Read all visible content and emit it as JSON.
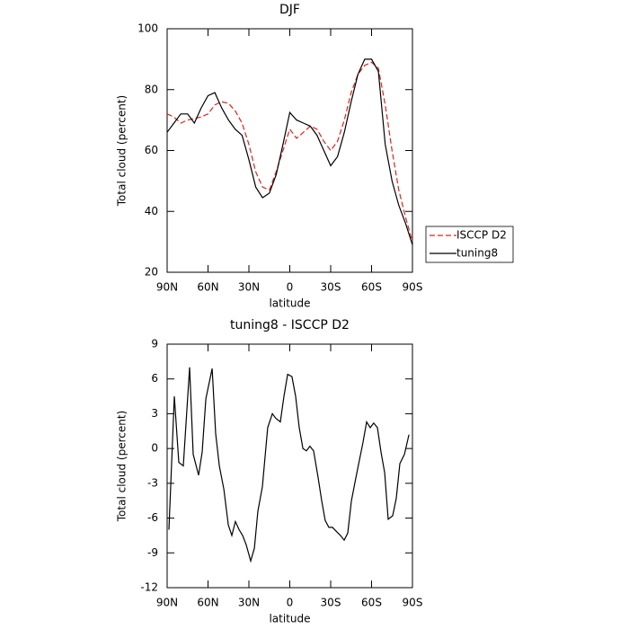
{
  "chart_data": [
    {
      "type": "line",
      "title": "DJF",
      "xlabel": "latitude",
      "ylabel": "Total cloud (percent)",
      "x": [
        90,
        85,
        80,
        75,
        70,
        65,
        60,
        55,
        50,
        45,
        40,
        35,
        30,
        25,
        20,
        15,
        10,
        5,
        0,
        -5,
        -10,
        -15,
        -20,
        -25,
        -30,
        -35,
        -40,
        -45,
        -50,
        -55,
        -60,
        -65,
        -70,
        -75,
        -80,
        -85,
        -90
      ],
      "series": [
        {
          "name": "ISCCP D2",
          "color": "#e0201a",
          "dash": true,
          "values": [
            72,
            71,
            69,
            70,
            70.5,
            71,
            72,
            75,
            76,
            75.5,
            73,
            69,
            62,
            53,
            48,
            47,
            53,
            60,
            67,
            64,
            66,
            68,
            67,
            63,
            60,
            63,
            70,
            79,
            85,
            88,
            89,
            87,
            75,
            60,
            47,
            38,
            30
          ]
        },
        {
          "name": "tuning8",
          "color": "#000000",
          "dash": false,
          "values": [
            66,
            69,
            72,
            72,
            69,
            74,
            78,
            79,
            74,
            70,
            67,
            65,
            57,
            48,
            44.5,
            46,
            52,
            62,
            72.5,
            70,
            69,
            68,
            65,
            60,
            55,
            58,
            66,
            76,
            85,
            90,
            90,
            86,
            62,
            50,
            42,
            36,
            29
          ]
        }
      ],
      "xlim": [
        90,
        -90
      ],
      "xticks": [
        {
          "value": 90,
          "label": "90N"
        },
        {
          "value": 60,
          "label": "60N"
        },
        {
          "value": 30,
          "label": "30N"
        },
        0,
        {
          "value": -30,
          "label": "30S"
        },
        {
          "value": -60,
          "label": "60S"
        },
        {
          "value": -90,
          "label": "90S"
        }
      ],
      "ylim": [
        20,
        100
      ],
      "yticks": [
        20,
        40,
        60,
        80,
        100
      ],
      "legend": "outside-right"
    },
    {
      "type": "line",
      "title": "tuning8 - ISCCP D2",
      "xlabel": "latitude",
      "ylabel": "Total cloud (percent)",
      "x": [
        88.7,
        84.7,
        81.4,
        78.1,
        73.5,
        70.9,
        66.9,
        64.3,
        61.6,
        57.0,
        54.4,
        51.7,
        48.4,
        45.1,
        42.5,
        39.9,
        37.2,
        34.6,
        32.0,
        28.7,
        26.0,
        23.4,
        20.1,
        16.2,
        12.8,
        10.2,
        6.9,
        4.3,
        1.6,
        -1.6,
        -4.3,
        -6.9,
        -9.6,
        -12.2,
        -14.8,
        -17.5,
        -20.8,
        -23.4,
        -26.0,
        -28.7,
        -31.3,
        -34.6,
        -37.2,
        -39.9,
        -42.5,
        -45.2,
        -48.5,
        -51.1,
        -53.7,
        -56.4,
        -59.0,
        -61.6,
        -64.3,
        -66.9,
        -69.6,
        -72.2,
        -75.5,
        -78.1,
        -80.8,
        -84.1,
        -87.4
      ],
      "series": [
        {
          "color": "#000000",
          "values": [
            -7,
            4.5,
            -1.2,
            -1.5,
            7,
            -0.5,
            -2.3,
            -0.3,
            4.3,
            6.9,
            1.3,
            -1.5,
            -3.5,
            -6.6,
            -7.5,
            -6.3,
            -7,
            -7.5,
            -8.3,
            -9.7,
            -8.6,
            -5.4,
            -3.3,
            1.8,
            3,
            2.6,
            2.3,
            4.5,
            6.4,
            6.2,
            4.5,
            1.8,
            0,
            -0.2,
            0.2,
            -0.2,
            -2.5,
            -4.5,
            -6.2,
            -6.8,
            -6.8,
            -7.2,
            -7.5,
            -7.9,
            -7.3,
            -4.5,
            -2.5,
            -1,
            0.5,
            2.3,
            1.8,
            2.2,
            1.8,
            -0.3,
            -2.1,
            -6.1,
            -5.8,
            -4.3,
            -1.3,
            -0.5,
            1.2
          ]
        }
      ],
      "xlim": [
        90,
        -90
      ],
      "xticks": [
        {
          "value": 90,
          "label": "90N"
        },
        {
          "value": 60,
          "label": "60N"
        },
        {
          "value": 30,
          "label": "30N"
        },
        0,
        {
          "value": -30,
          "label": "30S"
        },
        {
          "value": -60,
          "label": "60S"
        },
        {
          "value": -90,
          "label": "90S"
        }
      ],
      "ylim": [
        -12,
        9
      ],
      "yticks": [
        -12,
        -9,
        -6,
        -3,
        0,
        3,
        6,
        9
      ]
    }
  ]
}
